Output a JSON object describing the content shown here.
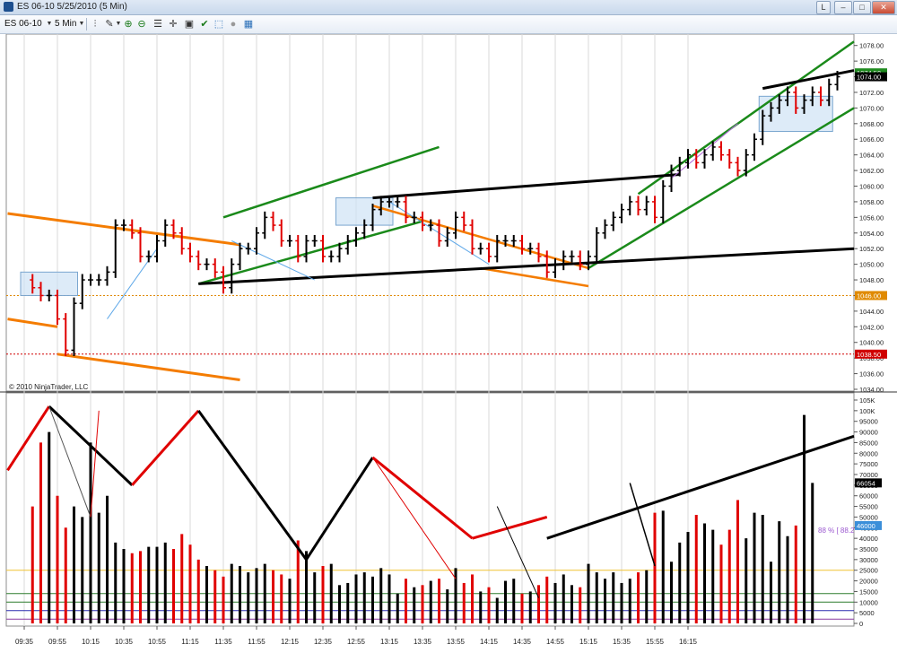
{
  "window": {
    "title": "ES 06-10  5/25/2010 (5 Min)",
    "buttons": [
      "L",
      "–",
      "□",
      "✕"
    ]
  },
  "toolbar": {
    "instrument": "ES 06-10",
    "interval": "5 Min",
    "icons": [
      "bar-style-icon",
      "pencil-icon",
      "zoom-in-icon",
      "zoom-out-icon",
      "properties-icon",
      "crosshair-icon",
      "data-box-icon",
      "strategy-icon",
      "indicator-icon",
      "circle-icon",
      "grid-icon"
    ]
  },
  "price_axis": {
    "labels": [
      "1078.00",
      "1076.00",
      "1074.00",
      "1072.00",
      "1070.00",
      "1068.00",
      "1066.00",
      "1064.00",
      "1062.00",
      "1060.00",
      "1058.00",
      "1056.00",
      "1054.00",
      "1052.00",
      "1050.00",
      "1048.00",
      "1046.00",
      "1044.00",
      "1042.00",
      "1040.00",
      "1038.00",
      "1036.00",
      "1034.00"
    ],
    "badges": [
      {
        "text": "1074.50",
        "color": "#1f8a1f"
      },
      {
        "text": "1074.00",
        "color": "#000000"
      },
      {
        "text": "1046.00",
        "color": "#e08a00"
      },
      {
        "text": "1038.50",
        "color": "#d00000"
      }
    ]
  },
  "volume_axis": {
    "labels": [
      "105K",
      "100K",
      "95000",
      "90000",
      "85000",
      "80000",
      "75000",
      "70000",
      "65000",
      "60000",
      "55000",
      "50000",
      "45000",
      "40000",
      "35000",
      "30000",
      "25000",
      "20000",
      "15000",
      "10000",
      "5000",
      "0"
    ],
    "badges": [
      {
        "text": "66054",
        "color": "#000000"
      },
      {
        "text": "46000",
        "color": "#3b8fd9"
      }
    ]
  },
  "copyright": "© 2010 NinjaTrader, LLC",
  "indicator_label": "88 % [ 88.2",
  "time_labels": [
    "09:35",
    "09:55",
    "10:15",
    "10:35",
    "10:55",
    "11:15",
    "11:35",
    "11:55",
    "12:15",
    "12:35",
    "12:55",
    "13:15",
    "13:35",
    "13:55",
    "14:15",
    "14:35",
    "14:55",
    "15:15",
    "15:35",
    "15:55",
    "16:15"
  ],
  "chart_data": {
    "type": "ohlc",
    "title": "ES 06-10 5/25/2010 (5 Min)",
    "bar_interval": "5 Min",
    "price_range": [
      1034,
      1079
    ],
    "volume_range": [
      0,
      105000
    ],
    "first_bar_time": "09:35",
    "approx_price_path": [
      1048,
      1047,
      1046,
      1046,
      1043,
      1039,
      1045,
      1048,
      1048,
      1048,
      1049,
      1055,
      1055,
      1054,
      1051,
      1051,
      1053,
      1055,
      1054,
      1052,
      1051,
      1050,
      1050,
      1049,
      1047,
      1050,
      1052,
      1052,
      1054,
      1056,
      1055,
      1053,
      1053,
      1051,
      1053,
      1053,
      1051,
      1051,
      1052,
      1053,
      1054,
      1055,
      1057,
      1058,
      1058,
      1058,
      1056,
      1056,
      1055,
      1055,
      1053,
      1054,
      1056,
      1055,
      1052,
      1052,
      1051,
      1053,
      1053,
      1053,
      1052,
      1052,
      1051,
      1049,
      1050,
      1051,
      1051,
      1050,
      1051,
      1054,
      1055,
      1056,
      1057,
      1058,
      1057,
      1058,
      1056,
      1060,
      1062,
      1063,
      1064,
      1063,
      1064,
      1065,
      1064,
      1063,
      1062,
      1064,
      1066,
      1069,
      1070,
      1071,
      1072,
      1070,
      1071,
      1072,
      1071,
      1073,
      1074
    ],
    "volume": [
      55000,
      85000,
      90000,
      60000,
      45000,
      55000,
      50000,
      85000,
      52000,
      60000,
      38000,
      35000,
      33000,
      34000,
      36000,
      36000,
      38000,
      35000,
      42000,
      37000,
      30000,
      27000,
      25000,
      22000,
      28000,
      27000,
      24000,
      26000,
      28000,
      25000,
      23000,
      21000,
      39000,
      34000,
      24000,
      27000,
      28000,
      18000,
      19000,
      23000,
      24000,
      22000,
      26000,
      23000,
      14000,
      21000,
      17000,
      18000,
      20000,
      21000,
      16000,
      26000,
      19000,
      23000,
      15000,
      17000,
      12000,
      20000,
      21000,
      14000,
      15000,
      18000,
      22000,
      19000,
      23000,
      18000,
      17000,
      28000,
      24000,
      21000,
      24000,
      19000,
      21000,
      24000,
      25000,
      52000,
      53000,
      29000,
      38000,
      43000,
      51000,
      47000,
      44000,
      37000,
      44000,
      58000,
      40000,
      52000,
      51000,
      29000,
      48000,
      41000,
      46000,
      98000,
      66054
    ],
    "volume_colors_note": "bars are red when close < open, black otherwise",
    "reference_levels": [
      {
        "price": 1046.0,
        "color": "#e08a00"
      },
      {
        "price": 1038.5,
        "color": "#d00000"
      }
    ],
    "volume_reference_level": 25000,
    "percent_indicator": "88 %"
  }
}
